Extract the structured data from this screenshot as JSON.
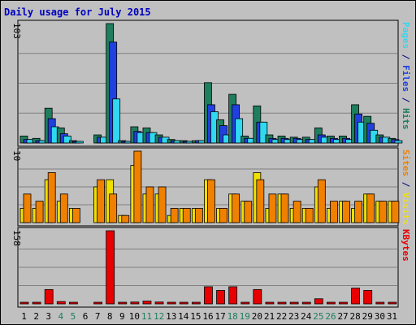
{
  "chart_data": {
    "type": "bar",
    "title": "Daily usage for July 2015",
    "x_labels": [
      "1",
      "2",
      "3",
      "4",
      "5",
      "6",
      "7",
      "8",
      "9",
      "10",
      "11",
      "12",
      "13",
      "14",
      "15",
      "16",
      "17",
      "18",
      "19",
      "20",
      "21",
      "22",
      "23",
      "24",
      "25",
      "26",
      "27",
      "28",
      "29",
      "30",
      "31"
    ],
    "weekend_days": [
      4,
      5,
      11,
      12,
      18,
      19,
      25,
      26
    ],
    "panels": [
      {
        "id": "hits",
        "max_label": "103",
        "ylim": [
          0,
          103
        ],
        "series": [
          {
            "name": "Hits",
            "color": "#1e7e5e",
            "values": [
              6,
              4,
              30,
              13,
              2,
              0,
              7,
              103,
              2,
              14,
              13,
              7,
              3,
              2,
              2,
              52,
              20,
              42,
              6,
              32,
              7,
              6,
              5,
              5,
              13,
              6,
              6,
              33,
              23,
              7,
              4
            ]
          },
          {
            "name": "Files",
            "color": "#2040e0",
            "values": [
              3,
              2,
              21,
              8,
              1,
              0,
              5,
              87,
              1,
              10,
              9,
              5,
              2,
              1,
              2,
              33,
              15,
              33,
              4,
              18,
              4,
              4,
              4,
              3,
              7,
              4,
              4,
              25,
              17,
              5,
              3
            ]
          },
          {
            "name": "Pages",
            "color": "#30d8f0",
            "values": [
              3,
              2,
              14,
              6,
              1,
              0,
              5,
              38,
              1,
              9,
              9,
              5,
              2,
              1,
              2,
              27,
              7,
              21,
              4,
              18,
              3,
              3,
              3,
              3,
              5,
              3,
              3,
              18,
              11,
              5,
              2
            ]
          }
        ]
      },
      {
        "id": "visits",
        "max_label": "10",
        "ylim": [
          0,
          10
        ],
        "series": [
          {
            "name": "Visits",
            "color": "#f0e000",
            "values": [
              2,
              2,
              6,
              3,
              2,
              0,
              5,
              6,
              1,
              8,
              4,
              4,
              1,
              2,
              2,
              6,
              2,
              4,
              3,
              7,
              2,
              4,
              2,
              2,
              5,
              2,
              3,
              2,
              4,
              3,
              3
            ]
          },
          {
            "name": "Sites",
            "color": "#f08000",
            "values": [
              4,
              3,
              7,
              4,
              2,
              0,
              6,
              4,
              1,
              10,
              5,
              5,
              2,
              2,
              2,
              6,
              2,
              4,
              3,
              6,
              4,
              4,
              3,
              2,
              6,
              3,
              3,
              3,
              4,
              3,
              3
            ]
          }
        ]
      },
      {
        "id": "kbytes",
        "max_label": "158",
        "ylim": [
          0,
          158
        ],
        "series": [
          {
            "name": "KBytes",
            "color": "#e80000",
            "values": [
              3,
              3,
              31,
              5,
              1,
              0,
              3,
              158,
              1,
              4,
              6,
              4,
              2,
              2,
              2,
              37,
              29,
              37,
              2,
              31,
              2,
              2,
              2,
              2,
              11,
              3,
              3,
              34,
              29,
              3,
              2
            ]
          }
        ]
      }
    ],
    "right_legend": [
      {
        "panel": "hits",
        "parts": [
          {
            "text": "Pages",
            "color": "#30d8f0"
          },
          {
            "text": " / ",
            "color": "#000080"
          },
          {
            "text": "Files",
            "color": "#2040e0"
          },
          {
            "text": " / ",
            "color": "#000080"
          },
          {
            "text": "Hits",
            "color": "#1e7e5e"
          }
        ]
      },
      {
        "panel": "visits",
        "parts": [
          {
            "text": "Sites",
            "color": "#f08000"
          },
          {
            "text": " / ",
            "color": "#000080"
          },
          {
            "text": "Visits",
            "color": "#f0e000"
          }
        ]
      },
      {
        "panel": "kbytes",
        "parts": [
          {
            "text": "KBytes",
            "color": "#e80000"
          }
        ]
      }
    ],
    "grid": true
  }
}
